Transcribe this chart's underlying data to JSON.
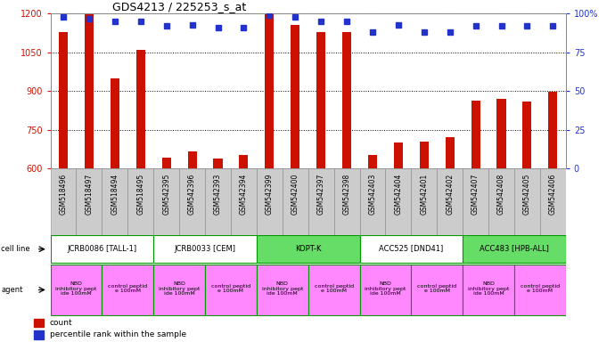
{
  "title": "GDS4213 / 225253_s_at",
  "samples": [
    "GSM518496",
    "GSM518497",
    "GSM518494",
    "GSM518495",
    "GSM542395",
    "GSM542396",
    "GSM542393",
    "GSM542394",
    "GSM542399",
    "GSM542400",
    "GSM542397",
    "GSM542398",
    "GSM542403",
    "GSM542404",
    "GSM542401",
    "GSM542402",
    "GSM542407",
    "GSM542408",
    "GSM542405",
    "GSM542406"
  ],
  "counts": [
    1130,
    1200,
    950,
    1058,
    640,
    665,
    637,
    650,
    1198,
    1155,
    1130,
    1128,
    650,
    700,
    705,
    720,
    862,
    868,
    858,
    898
  ],
  "percentiles": [
    98,
    97,
    95,
    95,
    92,
    93,
    91,
    91,
    99,
    98,
    95,
    95,
    88,
    93,
    88,
    88,
    92,
    92,
    92,
    92
  ],
  "ylim_left": [
    600,
    1200
  ],
  "ylim_right": [
    0,
    100
  ],
  "yticks_left": [
    600,
    750,
    900,
    1050,
    1200
  ],
  "yticks_right": [
    0,
    25,
    50,
    75,
    100
  ],
  "cell_lines": [
    {
      "label": "JCRB0086 [TALL-1]",
      "start": 0,
      "end": 4,
      "color": "#FFFFFF"
    },
    {
      "label": "JCRB0033 [CEM]",
      "start": 4,
      "end": 8,
      "color": "#FFFFFF"
    },
    {
      "label": "KOPT-K",
      "start": 8,
      "end": 12,
      "color": "#66DD66"
    },
    {
      "label": "ACC525 [DND41]",
      "start": 12,
      "end": 16,
      "color": "#FFFFFF"
    },
    {
      "label": "ACC483 [HPB-ALL]",
      "start": 16,
      "end": 20,
      "color": "#66DD66"
    }
  ],
  "agents": [
    {
      "label": "NBD\ninhibitory pept\nide 100mM",
      "start": 0,
      "end": 2,
      "color": "#FF88FF"
    },
    {
      "label": "control peptid\ne 100mM",
      "start": 2,
      "end": 4,
      "color": "#FF88FF"
    },
    {
      "label": "NBD\ninhibitory pept\nide 100mM",
      "start": 4,
      "end": 6,
      "color": "#FF88FF"
    },
    {
      "label": "control peptid\ne 100mM",
      "start": 6,
      "end": 8,
      "color": "#FF88FF"
    },
    {
      "label": "NBD\ninhibitory pept\nide 100mM",
      "start": 8,
      "end": 10,
      "color": "#FF88FF"
    },
    {
      "label": "control peptid\ne 100mM",
      "start": 10,
      "end": 12,
      "color": "#FF88FF"
    },
    {
      "label": "NBD\ninhibitory pept\nide 100mM",
      "start": 12,
      "end": 14,
      "color": "#FF88FF"
    },
    {
      "label": "control peptid\ne 100mM",
      "start": 14,
      "end": 16,
      "color": "#FF88FF"
    },
    {
      "label": "NBD\ninhibitory pept\nide 100mM",
      "start": 16,
      "end": 18,
      "color": "#FF88FF"
    },
    {
      "label": "control peptid\ne 100mM",
      "start": 18,
      "end": 20,
      "color": "#FF88FF"
    }
  ],
  "bar_color": "#CC1100",
  "dot_color": "#2233CC",
  "cell_line_border_color": "#009900",
  "tick_bg_color": "#CCCCCC",
  "bg_color": "#FFFFFF",
  "left_axis_color": "#CC1100",
  "right_axis_color": "#2233CC"
}
